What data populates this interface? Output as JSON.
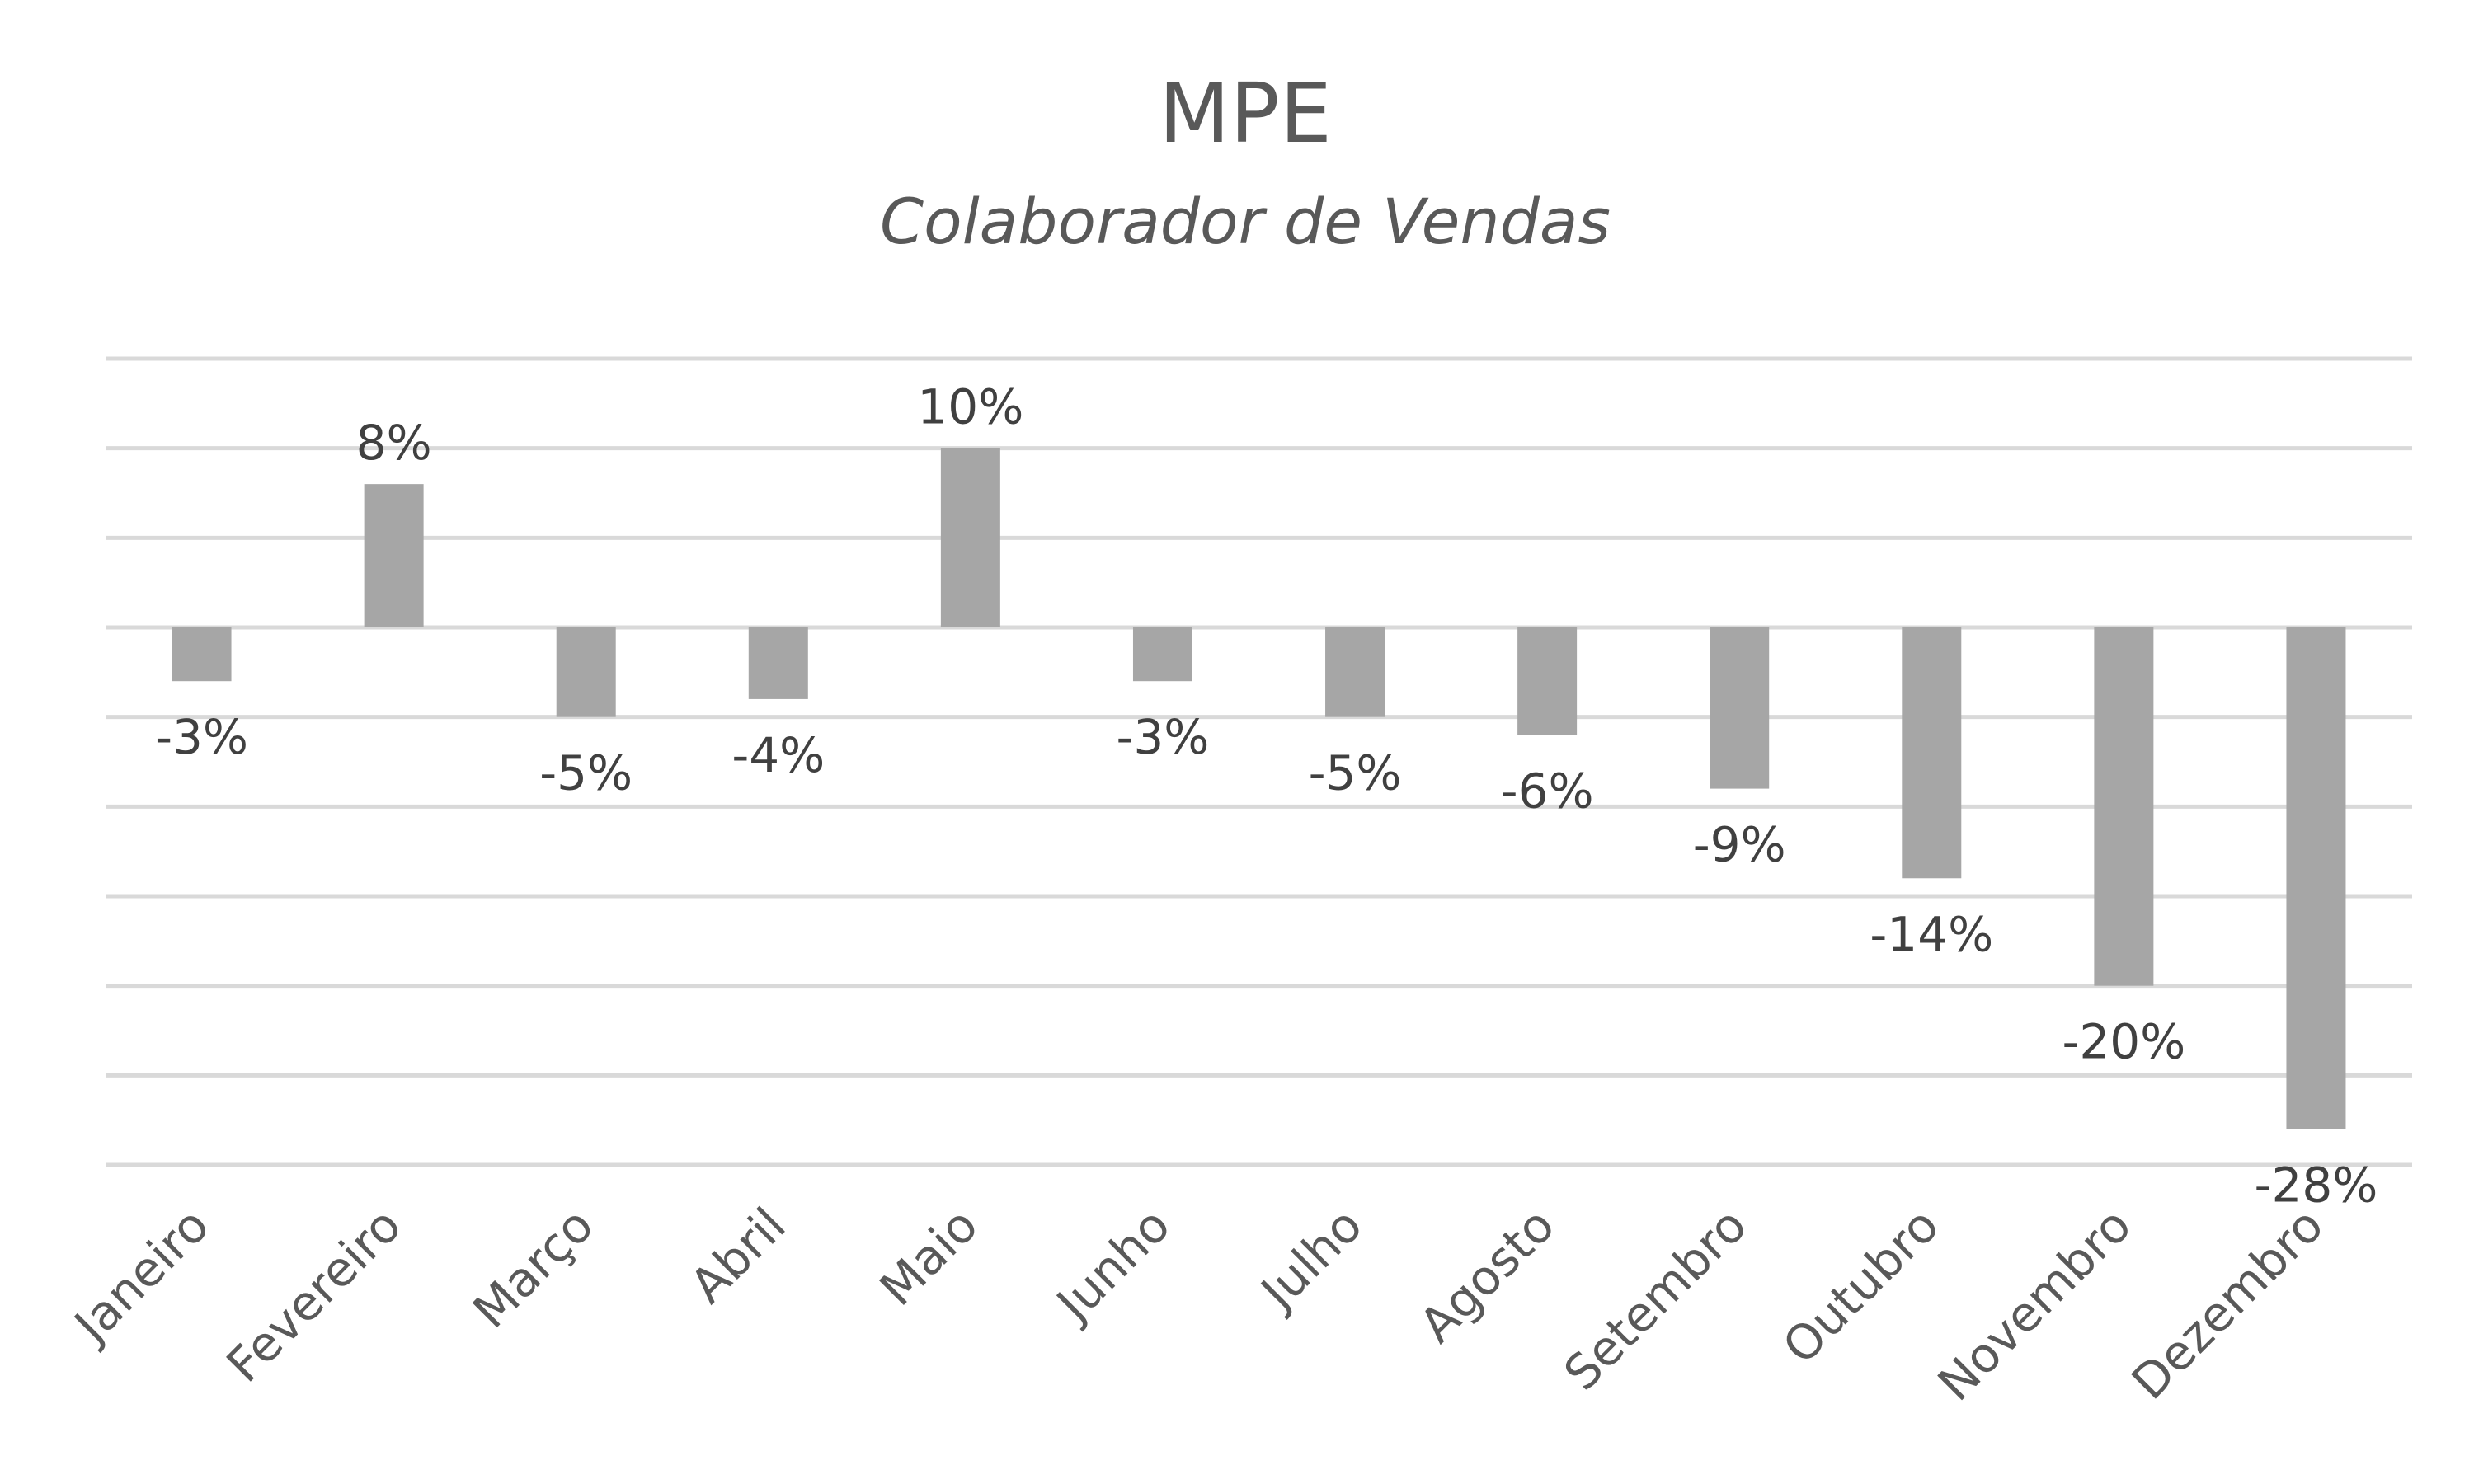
{
  "chart_data": {
    "type": "bar",
    "title": "MPE",
    "subtitle": "Colaborador de Vendas",
    "categories": [
      "Janeiro",
      "Fevereiro",
      "Março",
      "Abril",
      "Maio",
      "Junho",
      "Julho",
      "Agosto",
      "Setembro",
      "Outubro",
      "Novembro",
      "Dezembro"
    ],
    "values": [
      -3,
      8,
      -5,
      -4,
      10,
      -3,
      -5,
      -6,
      -9,
      -14,
      -20,
      -28
    ],
    "data_labels": [
      "-3%",
      "8%",
      "-5%",
      "-4%",
      "10%",
      "-3%",
      "-5%",
      "-6%",
      "-9%",
      "-14%",
      "-20%",
      "-28%"
    ],
    "ylim": [
      -30,
      15
    ],
    "grid": true,
    "legend": "none",
    "xlabel": "",
    "ylabel": "",
    "bar_color": "#a6a6a6",
    "grid_color": "#d9d9d9",
    "text_color": "#595959"
  }
}
